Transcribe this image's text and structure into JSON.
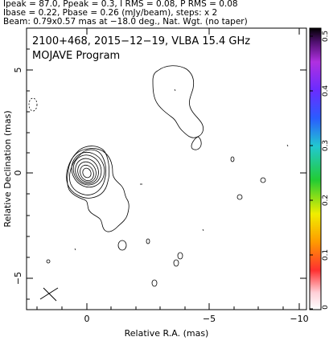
{
  "header": {
    "line1": "Ipeak = 87.0, Ppeak = 0.3, I RMS = 0.08, P RMS = 0.08",
    "line2": "Ibase = 0.22, Pbase = 0.26 (mJy/beam), steps: x 2",
    "line3": "Beam: 0.79x0.57 mas at −18.0 deg., Nat. Wgt. (no taper)"
  },
  "plot": {
    "title": "2100+468, 2015−12−19, VLBA 15.4 GHz",
    "subtitle": "MOJAVE Program",
    "xlabel": "Relative R.A. (mas)",
    "ylabel": "Relative Declination (mas)",
    "xticks": [
      "0",
      "−5",
      "−10"
    ],
    "yticks": [
      "5",
      "0",
      "−5"
    ]
  },
  "colorbar": {
    "ticks": [
      "0.5",
      "0.4",
      "0.3",
      "0.2",
      "0.1",
      "0"
    ],
    "tick_values": [
      0.5,
      0.4,
      0.3,
      0.2,
      0.1,
      0
    ]
  },
  "colors": {
    "contour": "#000000",
    "axes": "#000000"
  }
}
